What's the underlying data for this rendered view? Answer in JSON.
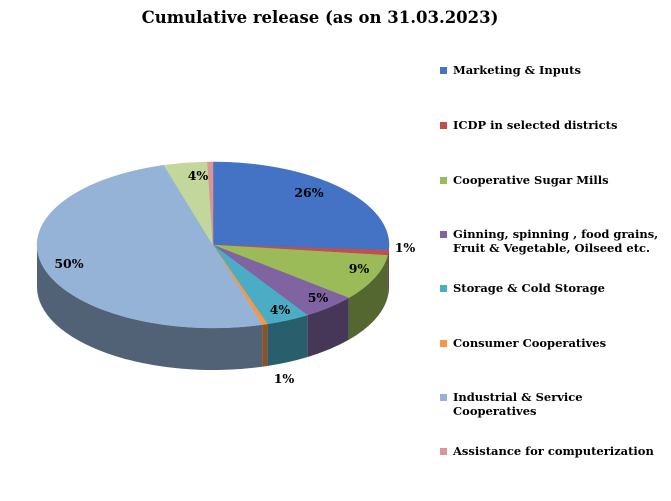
{
  "chart_data": {
    "type": "pie",
    "style": "3d",
    "title": "Cumulative release (as on 31.03.2023)",
    "legend_position": "right",
    "slices": [
      {
        "name": "Marketing & Inputs",
        "value": 26,
        "label": "26%",
        "color": "#4472c4"
      },
      {
        "name": "ICDP in selected districts",
        "value": 1,
        "label": "1%",
        "color": "#c0504d"
      },
      {
        "name": "Cooperative Sugar Mills",
        "value": 9,
        "label": "9%",
        "color": "#9bbb59"
      },
      {
        "name": "Ginning, spinning , food grains, Fruit & Vegetable, Oilseed  etc.",
        "value": 5,
        "label": "5%",
        "color": "#8064a2"
      },
      {
        "name": "Storage & Cold Storage",
        "value": 4,
        "label": "4%",
        "color": "#4bacc6"
      },
      {
        "name": "Consumer Cooperatives",
        "value": 0.5,
        "label": "1%",
        "color": "#f79646"
      },
      {
        "name": "Industrial & Service Cooperatives",
        "value": 50,
        "label": "50%",
        "color": "#95b3d7"
      },
      {
        "name": "",
        "value": 4,
        "label": "4%",
        "color": "#c3d69b"
      },
      {
        "name": "Assistance for computerization",
        "value": 0.5,
        "label": "",
        "color": "#d99694"
      }
    ]
  }
}
